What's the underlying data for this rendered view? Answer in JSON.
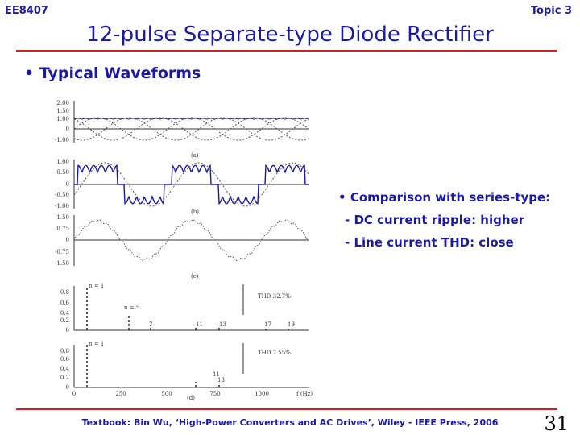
{
  "header": {
    "course": "EE8407",
    "topic": "Topic 3",
    "title": "12-pulse Separate-type Diode Rectifier"
  },
  "bullet": "Typical Waveforms",
  "figure": {
    "panels": [
      {
        "label": "(a)",
        "yticks": [
          "2.00",
          "1.50",
          "1.00",
          "0",
          "-1.00"
        ]
      },
      {
        "label": "(b)",
        "yticks": [
          "1.00",
          "0.50",
          "0",
          "-0.50",
          "-1.00"
        ]
      },
      {
        "label": "(c)",
        "yticks": [
          "1.50",
          "0.75",
          "0",
          "-0.75",
          "-1.50"
        ]
      }
    ],
    "spectra": [
      {
        "yticks": [
          "0.8",
          "0.6",
          "0.4",
          "0.2",
          "0"
        ],
        "harmonics": [
          "n = 1",
          "n = 5",
          "7",
          "11",
          "13",
          "17",
          "19"
        ],
        "thd": "THD   32.7%"
      },
      {
        "yticks": [
          "0.8",
          "0.6",
          "0.4",
          "0.2",
          "0"
        ],
        "harmonics": [
          "n = 1",
          "11",
          "13"
        ],
        "thd": "THD   7.55%"
      }
    ],
    "xticks": [
      "0",
      "250",
      "500",
      "750",
      "1000"
    ],
    "xlabel": "f (Hz)",
    "label": "(d)"
  },
  "comparison": {
    "heading": "Comparison with series-type:",
    "items": [
      "- DC current ripple:  higher",
      "- Line current THD:  close"
    ]
  },
  "footer": {
    "citation": "Textbook: Bin Wu, ‘High-Power Converters and AC Drives’, Wiley - IEEE Press, 2006",
    "page": "31"
  }
}
